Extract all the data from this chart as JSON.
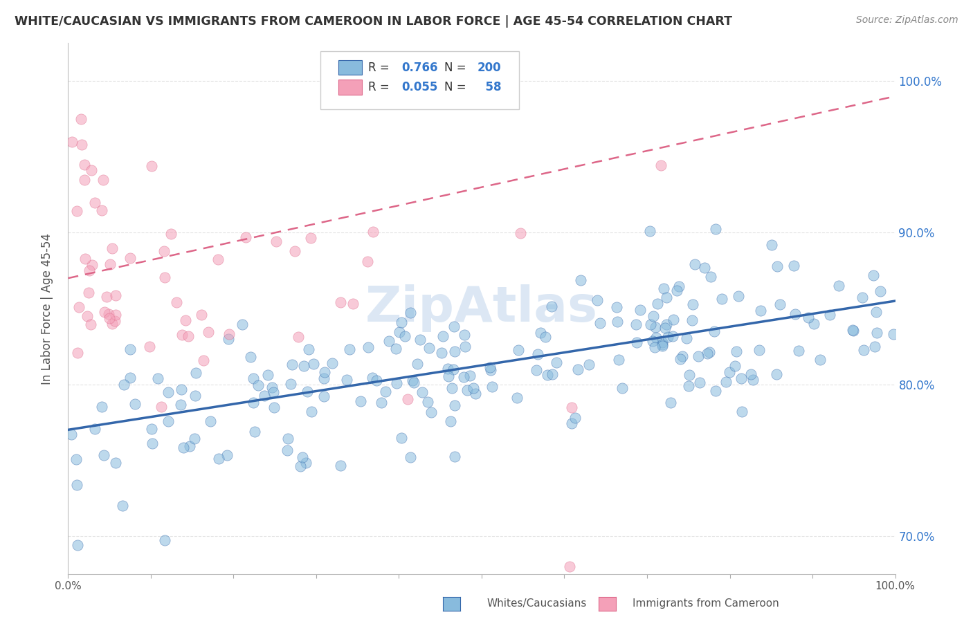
{
  "title": "WHITE/CAUCASIAN VS IMMIGRANTS FROM CAMEROON IN LABOR FORCE | AGE 45-54 CORRELATION CHART",
  "source": "Source: ZipAtlas.com",
  "ylabel": "In Labor Force | Age 45-54",
  "blue_R": 0.766,
  "blue_N": 200,
  "pink_R": 0.055,
  "pink_N": 58,
  "blue_color": "#88bbdd",
  "pink_color": "#f4a0b8",
  "blue_line_color": "#3366aa",
  "pink_line_color": "#dd6688",
  "watermark": "ZipAtlas",
  "xlim": [
    0.0,
    1.0
  ],
  "ylim": [
    0.675,
    1.025
  ],
  "blue_trend_y0": 0.77,
  "blue_trend_y1": 0.855,
  "pink_trend_y0": 0.87,
  "pink_trend_y1": 0.99,
  "legend_label_blue": "Whites/Caucasians",
  "legend_label_pink": "Immigrants from Cameroon",
  "yticks": [
    0.7,
    0.8,
    0.9,
    1.0
  ],
  "ytick_labels": [
    "70.0%",
    "80.0%",
    "90.0%",
    "100.0%"
  ],
  "xtick_labels": [
    "0.0%",
    "",
    "",
    "",
    "",
    "100.0%"
  ],
  "background_color": "#ffffff",
  "grid_color": "#dddddd",
  "title_color": "#333333",
  "axis_color": "#555555",
  "text_color_blue": "#3377cc",
  "text_color_dark": "#333333"
}
